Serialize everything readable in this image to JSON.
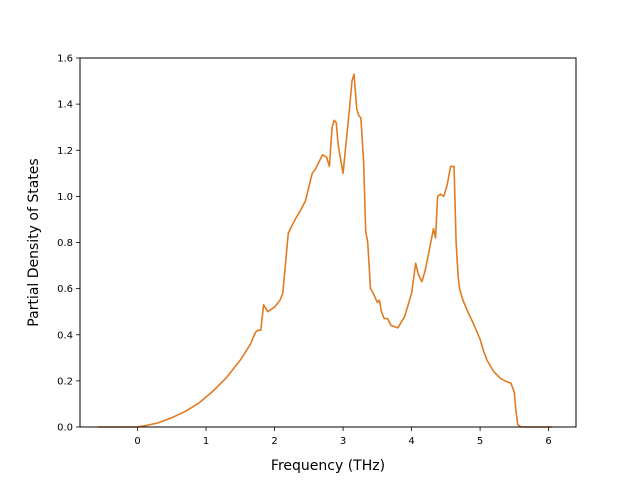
{
  "chart_data": {
    "type": "line",
    "title": "",
    "xlabel": "Frequency (THz)",
    "ylabel": "Partial Density of States",
    "xlim": [
      -0.84,
      6.4
    ],
    "ylim": [
      0.0,
      1.6
    ],
    "xticks": [
      0,
      1,
      2,
      3,
      4,
      5,
      6
    ],
    "xtick_labels": [
      "0",
      "1",
      "2",
      "3",
      "4",
      "5",
      "6"
    ],
    "yticks": [
      0.0,
      0.2,
      0.4,
      0.6,
      0.8,
      1.0,
      1.2,
      1.4,
      1.6
    ],
    "ytick_labels": [
      "0.0",
      "0.2",
      "0.4",
      "0.6",
      "0.8",
      "1.0",
      "1.2",
      "1.4",
      "1.6"
    ],
    "grid": false,
    "series": [
      {
        "color": "#e07b22",
        "x": [
          -0.57,
          -0.3,
          0.0,
          0.1,
          0.3,
          0.5,
          0.7,
          0.9,
          1.1,
          1.3,
          1.5,
          1.65,
          1.72,
          1.76,
          1.8,
          1.84,
          1.9,
          2.0,
          2.08,
          2.12,
          2.2,
          2.3,
          2.38,
          2.45,
          2.55,
          2.6,
          2.7,
          2.76,
          2.8,
          2.84,
          2.87,
          2.9,
          2.93,
          3.0,
          3.05,
          3.1,
          3.13,
          3.16,
          3.2,
          3.23,
          3.26,
          3.3,
          3.33,
          3.36,
          3.4,
          3.44,
          3.5,
          3.53,
          3.56,
          3.6,
          3.65,
          3.7,
          3.8,
          3.9,
          4.0,
          4.06,
          4.1,
          4.15,
          4.2,
          4.28,
          4.32,
          4.35,
          4.38,
          4.42,
          4.47,
          4.52,
          4.57,
          4.62,
          4.65,
          4.68,
          4.7,
          4.75,
          4.82,
          4.9,
          5.0,
          5.05,
          5.1,
          5.2,
          5.3,
          5.4,
          5.45,
          5.5,
          5.52,
          5.55,
          5.6,
          5.8,
          6.05
        ],
        "y": [
          0.0,
          0.0,
          0.0,
          0.005,
          0.018,
          0.04,
          0.068,
          0.105,
          0.155,
          0.215,
          0.29,
          0.36,
          0.41,
          0.42,
          0.42,
          0.53,
          0.5,
          0.52,
          0.55,
          0.58,
          0.84,
          0.9,
          0.94,
          0.98,
          1.1,
          1.12,
          1.18,
          1.17,
          1.13,
          1.3,
          1.33,
          1.32,
          1.22,
          1.1,
          1.25,
          1.4,
          1.5,
          1.53,
          1.38,
          1.35,
          1.34,
          1.15,
          0.85,
          0.8,
          0.6,
          0.58,
          0.54,
          0.55,
          0.5,
          0.47,
          0.47,
          0.44,
          0.43,
          0.48,
          0.58,
          0.71,
          0.66,
          0.63,
          0.68,
          0.8,
          0.86,
          0.82,
          1.0,
          1.01,
          1.0,
          1.05,
          1.13,
          1.13,
          0.8,
          0.65,
          0.6,
          0.55,
          0.5,
          0.45,
          0.38,
          0.33,
          0.29,
          0.24,
          0.21,
          0.195,
          0.19,
          0.15,
          0.08,
          0.01,
          0.0,
          0.0,
          0.0
        ]
      }
    ]
  }
}
